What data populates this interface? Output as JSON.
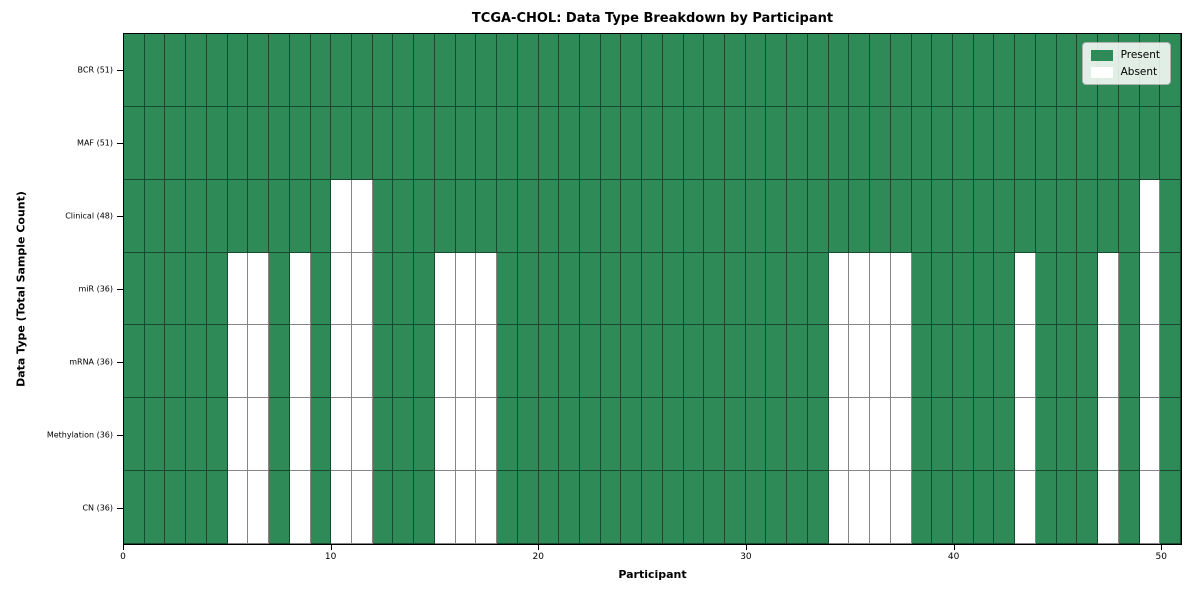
{
  "chart_data": {
    "type": "heatmap",
    "title": "TCGA-CHOL: Data Type Breakdown by Participant",
    "xlabel": "Participant",
    "ylabel": "Data Type (Total Sample Count)",
    "n_participants": 51,
    "x_range": [
      0,
      51
    ],
    "x_ticks": [
      0,
      10,
      20,
      30,
      40,
      50
    ],
    "grid": true,
    "legend_position": "upper right",
    "colors": {
      "present": "#2e8b57",
      "absent": "#ffffff",
      "gridline": "rgba(0,0,0,0.48)"
    },
    "legend": [
      {
        "label": "Present",
        "color": "#2e8b57"
      },
      {
        "label": "Absent",
        "color": "#ffffff"
      }
    ],
    "rows": [
      {
        "label": "BCR (51)",
        "name": "BCR",
        "total": 51,
        "absent_participants": []
      },
      {
        "label": "MAF (51)",
        "name": "MAF",
        "total": 51,
        "absent_participants": []
      },
      {
        "label": "Clinical (48)",
        "name": "Clinical",
        "total": 48,
        "absent_participants": [
          10,
          11,
          49
        ]
      },
      {
        "label": "miR (36)",
        "name": "miR",
        "total": 36,
        "absent_participants": [
          5,
          6,
          8,
          10,
          11,
          15,
          16,
          17,
          34,
          35,
          36,
          37,
          43,
          47,
          49
        ]
      },
      {
        "label": "mRNA (36)",
        "name": "mRNA",
        "total": 36,
        "absent_participants": [
          5,
          6,
          8,
          10,
          11,
          15,
          16,
          17,
          34,
          35,
          36,
          37,
          43,
          47,
          49
        ]
      },
      {
        "label": "Methylation (36)",
        "name": "Methylation",
        "total": 36,
        "absent_participants": [
          5,
          6,
          8,
          10,
          11,
          15,
          16,
          17,
          34,
          35,
          36,
          37,
          43,
          47,
          49
        ]
      },
      {
        "label": "CN (36)",
        "name": "CN",
        "total": 36,
        "absent_participants": [
          5,
          6,
          8,
          10,
          11,
          15,
          16,
          17,
          34,
          35,
          36,
          37,
          43,
          47,
          49
        ]
      }
    ]
  }
}
